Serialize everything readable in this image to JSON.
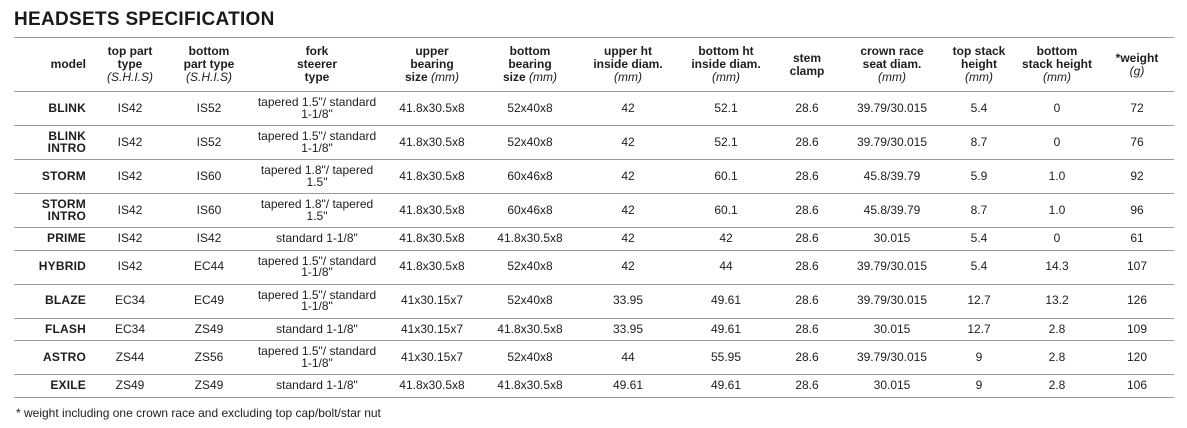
{
  "title": "HEADSETS SPECIFICATION",
  "footnote": "* weight including one crown race and excluding top cap/bolt/star nut",
  "table": {
    "columns": [
      {
        "key": "model",
        "align": "right",
        "lines": [
          [
            {
              "b": "model"
            }
          ]
        ]
      },
      {
        "key": "top-part-type",
        "lines": [
          [
            {
              "b": "top part"
            }
          ],
          [
            {
              "b": "type"
            }
          ],
          [
            {
              "i": "(S.H.I.S)"
            }
          ]
        ]
      },
      {
        "key": "bottom-part-type",
        "lines": [
          [
            {
              "b": "bottom"
            }
          ],
          [
            {
              "b": "part type"
            }
          ],
          [
            {
              "i": "(S.H.I.S)"
            }
          ]
        ]
      },
      {
        "key": "fork-steerer-type",
        "lines": [
          [
            {
              "b": "fork"
            }
          ],
          [
            {
              "b": "steerer"
            }
          ],
          [
            {
              "b": "type"
            }
          ]
        ]
      },
      {
        "key": "upper-bearing-size",
        "lines": [
          [
            {
              "b": "upper"
            }
          ],
          [
            {
              "b": "bearing"
            }
          ],
          [
            {
              "b": "size "
            },
            {
              "i": "(mm)"
            }
          ]
        ]
      },
      {
        "key": "bottom-bearing-size",
        "lines": [
          [
            {
              "b": "bottom"
            }
          ],
          [
            {
              "b": "bearing"
            }
          ],
          [
            {
              "b": "size "
            },
            {
              "i": "(mm)"
            }
          ]
        ]
      },
      {
        "key": "upper-ht-inside-diam",
        "lines": [
          [
            {
              "b": "upper ht"
            }
          ],
          [
            {
              "b": "inside diam."
            }
          ],
          [
            {
              "i": "(mm)"
            }
          ]
        ]
      },
      {
        "key": "bottom-ht-inside-diam",
        "lines": [
          [
            {
              "b": "bottom ht"
            }
          ],
          [
            {
              "b": "inside diam."
            }
          ],
          [
            {
              "i": "(mm)"
            }
          ]
        ]
      },
      {
        "key": "stem-clamp",
        "lines": [
          [
            {
              "b": "stem"
            }
          ],
          [
            {
              "b": "clamp"
            }
          ]
        ]
      },
      {
        "key": "crown-race-seat-diam",
        "lines": [
          [
            {
              "b": "crown race"
            }
          ],
          [
            {
              "b": "seat diam."
            }
          ],
          [
            {
              "i": "(mm)"
            }
          ]
        ]
      },
      {
        "key": "top-stack-height",
        "lines": [
          [
            {
              "b": "top stack"
            }
          ],
          [
            {
              "b": "height"
            }
          ],
          [
            {
              "i": "(mm)"
            }
          ]
        ]
      },
      {
        "key": "bottom-stack-height",
        "lines": [
          [
            {
              "b": "bottom"
            }
          ],
          [
            {
              "b": "stack height"
            }
          ],
          [
            {
              "i": "(mm)"
            }
          ]
        ]
      },
      {
        "key": "weight",
        "lines": [
          [
            {
              "b": "*weight"
            }
          ],
          [
            {
              "i": "(g)"
            }
          ]
        ]
      }
    ],
    "rows": [
      [
        "BLINK",
        "IS42",
        "IS52",
        "tapered 1.5\"/ standard 1-1/8\"",
        "41.8x30.5x8",
        "52x40x8",
        "42",
        "52.1",
        "28.6",
        "39.79/30.015",
        "5.4",
        "0",
        "72"
      ],
      [
        "BLINK INTRO",
        "IS42",
        "IS52",
        "tapered 1.5\"/ standard 1-1/8\"",
        "41.8x30.5x8",
        "52x40x8",
        "42",
        "52.1",
        "28.6",
        "39.79/30.015",
        "8.7",
        "0",
        "76"
      ],
      [
        "STORM",
        "IS42",
        "IS60",
        "tapered 1.8\"/ tapered 1.5\"",
        "41.8x30.5x8",
        "60x46x8",
        "42",
        "60.1",
        "28.6",
        "45.8/39.79",
        "5.9",
        "1.0",
        "92"
      ],
      [
        "STORM INTRO",
        "IS42",
        "IS60",
        "tapered 1.8\"/ tapered 1.5\"",
        "41.8x30.5x8",
        "60x46x8",
        "42",
        "60.1",
        "28.6",
        "45.8/39.79",
        "8.7",
        "1.0",
        "96"
      ],
      [
        "PRIME",
        "IS42",
        "IS42",
        "standard 1-1/8\"",
        "41.8x30.5x8",
        "41.8x30.5x8",
        "42",
        "42",
        "28.6",
        "30.015",
        "5.4",
        "0",
        "61"
      ],
      [
        "HYBRID",
        "IS42",
        "EC44",
        "tapered 1.5\"/ standard 1-1/8\"",
        "41.8x30.5x8",
        "52x40x8",
        "42",
        "44",
        "28.6",
        "39.79/30.015",
        "5.4",
        "14.3",
        "107"
      ],
      [
        "BLAZE",
        "EC34",
        "EC49",
        "tapered 1.5\"/ standard 1-1/8\"",
        "41x30.15x7",
        "52x40x8",
        "33.95",
        "49.61",
        "28.6",
        "39.79/30.015",
        "12.7",
        "13.2",
        "126"
      ],
      [
        "FLASH",
        "EC34",
        "ZS49",
        "standard 1-1/8\"",
        "41x30.15x7",
        "41.8x30.5x8",
        "33.95",
        "49.61",
        "28.6",
        "30.015",
        "12.7",
        "2.8",
        "109"
      ],
      [
        "ASTRO",
        "ZS44",
        "ZS56",
        "tapered 1.5\"/ standard 1-1/8\"",
        "41x30.15x7",
        "52x40x8",
        "44",
        "55.95",
        "28.6",
        "39.79/30.015",
        "9",
        "2.8",
        "120"
      ],
      [
        "EXILE",
        "ZS49",
        "ZS49",
        "standard 1-1/8\"",
        "41.8x30.5x8",
        "41.8x30.5x8",
        "49.61",
        "49.61",
        "28.6",
        "30.015",
        "9",
        "2.8",
        "106"
      ]
    ]
  }
}
